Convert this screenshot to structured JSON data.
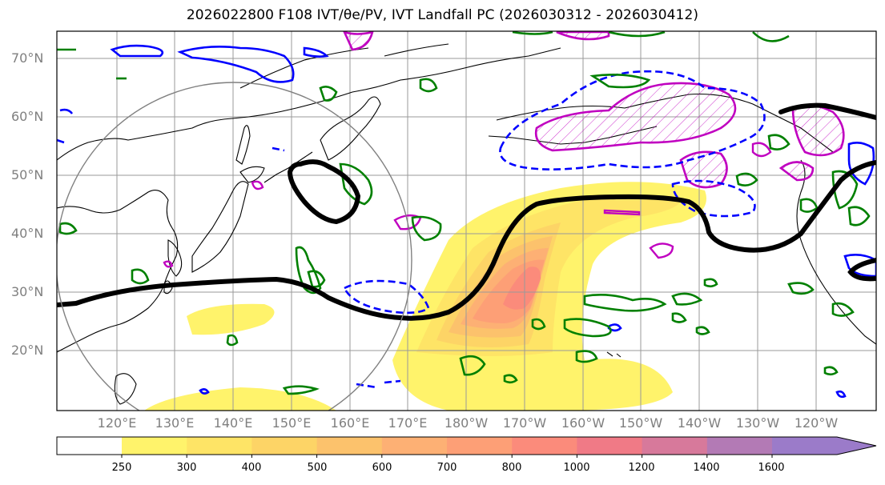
{
  "title": "2026022800 F108 IVT/θe/PV, IVT Landfall PC (2026030312 - 2026030412)",
  "lat_labels": [
    "70°N",
    "60°N",
    "50°N",
    "40°N",
    "30°N",
    "20°N"
  ],
  "lon_labels": [
    "120°E",
    "130°E",
    "140°E",
    "150°E",
    "160°E",
    "170°E",
    "180°W",
    "170°W",
    "160°W",
    "150°W",
    "140°W",
    "130°W",
    "120°W"
  ],
  "colorbar": {
    "ticks": [
      "250",
      "300",
      "400",
      "500",
      "600",
      "700",
      "800",
      "1000",
      "1200",
      "1400",
      "1600"
    ],
    "colors": [
      "#fff36b",
      "#fee466",
      "#fdd466",
      "#fcc26c",
      "#fdb074",
      "#fd9f76",
      "#fb8b7b",
      "#f07a86",
      "#d7799b",
      "#b37ab5",
      "#9b7bc9"
    ]
  },
  "contour_colors": {
    "theta_e": "#000000",
    "pv_positive": "#008000",
    "pv_negative": "#0000ff",
    "ivt_landfall": "#c000c0",
    "landfall_circle": "#808080"
  }
}
